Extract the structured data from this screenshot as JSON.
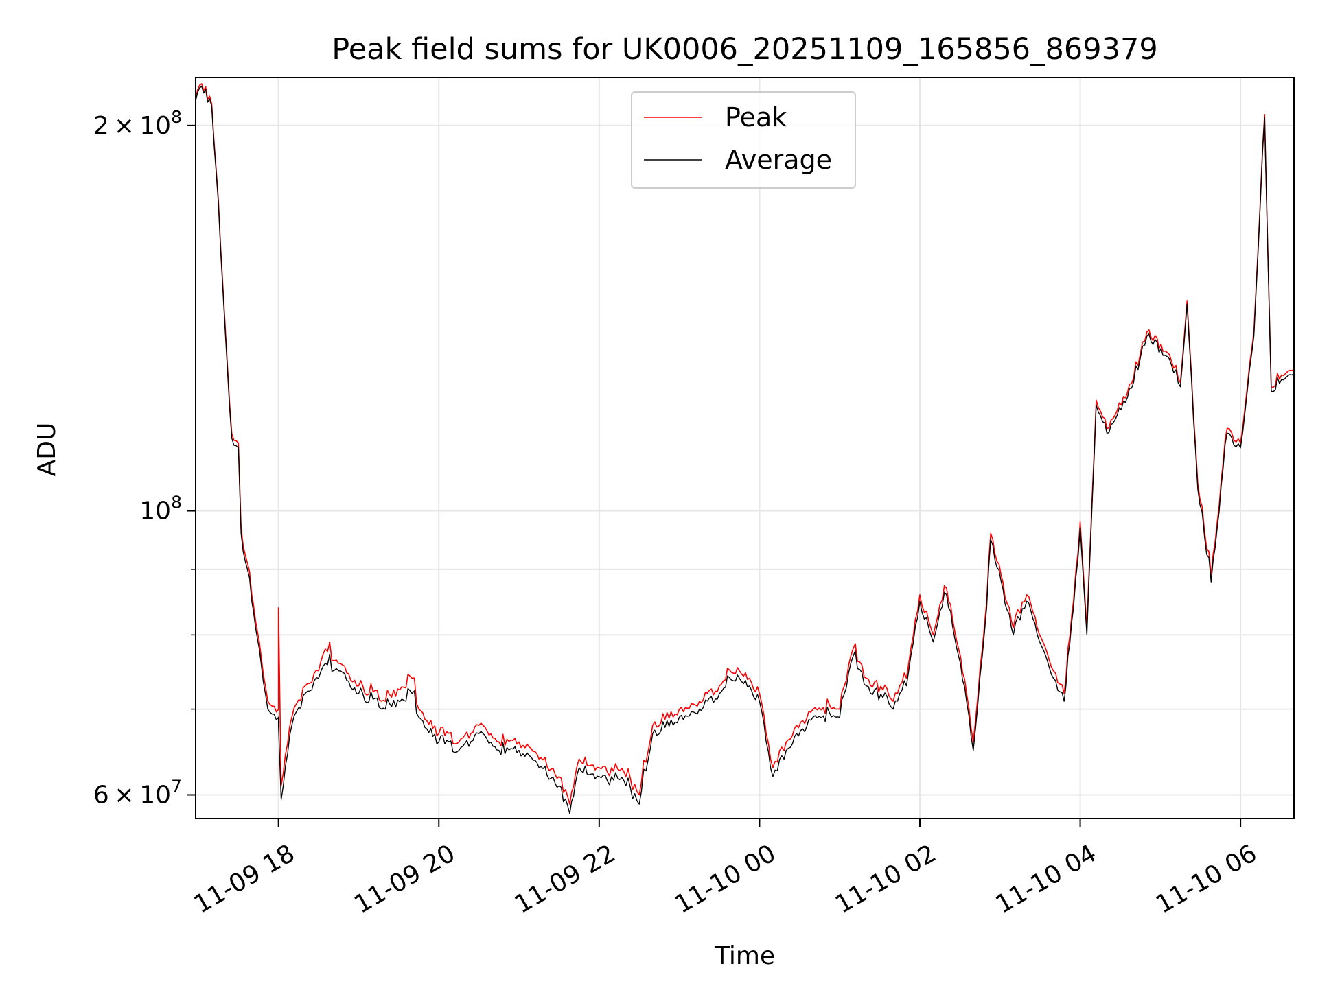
{
  "chart_data": {
    "type": "line",
    "title": "Peak field sums for UK0006_20251109_165856_869379",
    "xlabel": "Time",
    "ylabel": "ADU",
    "yscale": "log",
    "xlim": [
      "2025-11-09 16:58",
      "2025-11-10 06:40"
    ],
    "ylim": [
      57500000,
      218000000
    ],
    "grid": true,
    "legend_position": "upper center",
    "x_ticks": [
      {
        "time": "2025-11-09 18:00",
        "label": "11-09 18"
      },
      {
        "time": "2025-11-09 20:00",
        "label": "11-09 20"
      },
      {
        "time": "2025-11-09 22:00",
        "label": "11-09 22"
      },
      {
        "time": "2025-11-10 00:00",
        "label": "11-10 00"
      },
      {
        "time": "2025-11-10 02:00",
        "label": "11-10 02"
      },
      {
        "time": "2025-11-10 04:00",
        "label": "11-10 04"
      },
      {
        "time": "2025-11-10 06:00",
        "label": "11-10 06"
      }
    ],
    "y_ticks": [
      {
        "value": 60000000,
        "mantissa": "6",
        "exponent": "7",
        "label": "6 × 10^7"
      },
      {
        "value": 100000000,
        "mantissa": "",
        "exponent": "8",
        "label": "10^8"
      },
      {
        "value": 200000000,
        "mantissa": "2",
        "exponent": "8",
        "label": "2 × 10^8"
      }
    ],
    "y_minor_ticks": [
      70000000,
      80000000,
      90000000
    ],
    "series": [
      {
        "name": "Peak",
        "color": "#ff0000",
        "points": [
          [
            "2025-11-09 16:58",
            210000000
          ],
          [
            "2025-11-09 17:01",
            215000000
          ],
          [
            "2025-11-09 17:10",
            208000000
          ],
          [
            "2025-11-09 17:15",
            175000000
          ],
          [
            "2025-11-09 17:20",
            140000000
          ],
          [
            "2025-11-09 17:25",
            115000000
          ],
          [
            "2025-11-09 17:30",
            113000000
          ],
          [
            "2025-11-09 17:32",
            97000000
          ],
          [
            "2025-11-09 17:40",
            86000000
          ],
          [
            "2025-11-09 17:47",
            77000000
          ],
          [
            "2025-11-09 17:52",
            71000000
          ],
          [
            "2025-11-09 18:00",
            70000000
          ],
          [
            "2025-11-09 18:00",
            84000000
          ],
          [
            "2025-11-09 18:02",
            61000000
          ],
          [
            "2025-11-09 18:10",
            69000000
          ],
          [
            "2025-11-09 18:20",
            73000000
          ],
          [
            "2025-11-09 18:30",
            75000000
          ],
          [
            "2025-11-09 18:35",
            78000000
          ],
          [
            "2025-11-09 18:45",
            76000000
          ],
          [
            "2025-11-09 19:00",
            73000000
          ],
          [
            "2025-11-09 19:20",
            71000000
          ],
          [
            "2025-11-09 19:40",
            74000000
          ],
          [
            "2025-11-09 19:45",
            70000000
          ],
          [
            "2025-11-09 20:00",
            67000000
          ],
          [
            "2025-11-09 20:15",
            66000000
          ],
          [
            "2025-11-09 20:30",
            68000000
          ],
          [
            "2025-11-09 20:45",
            66000000
          ],
          [
            "2025-11-09 21:00",
            66000000
          ],
          [
            "2025-11-09 21:15",
            64000000
          ],
          [
            "2025-11-09 21:30",
            62000000
          ],
          [
            "2025-11-09 21:38",
            59000000
          ],
          [
            "2025-11-09 21:45",
            64000000
          ],
          [
            "2025-11-09 22:00",
            63000000
          ],
          [
            "2025-11-09 22:20",
            62000000
          ],
          [
            "2025-11-09 22:30",
            60000000
          ],
          [
            "2025-11-09 22:40",
            68000000
          ],
          [
            "2025-11-09 23:00",
            70000000
          ],
          [
            "2025-11-09 23:15",
            71000000
          ],
          [
            "2025-11-09 23:30",
            73000000
          ],
          [
            "2025-11-09 23:45",
            75000000
          ],
          [
            "2025-11-10 00:00",
            72000000
          ],
          [
            "2025-11-10 00:10",
            63000000
          ],
          [
            "2025-11-10 00:20",
            66000000
          ],
          [
            "2025-11-10 00:40",
            70000000
          ],
          [
            "2025-11-10 01:00",
            70000000
          ],
          [
            "2025-11-10 01:10",
            78000000
          ],
          [
            "2025-11-10 01:20",
            74000000
          ],
          [
            "2025-11-10 01:40",
            71000000
          ],
          [
            "2025-11-10 01:50",
            74000000
          ],
          [
            "2025-11-10 02:00",
            86000000
          ],
          [
            "2025-11-10 02:10",
            80000000
          ],
          [
            "2025-11-10 02:20",
            87000000
          ],
          [
            "2025-11-10 02:35",
            72000000
          ],
          [
            "2025-11-10 02:40",
            66000000
          ],
          [
            "2025-11-10 02:50",
            85000000
          ],
          [
            "2025-11-10 02:53",
            96000000
          ],
          [
            "2025-11-10 03:10",
            81000000
          ],
          [
            "2025-11-10 03:20",
            86000000
          ],
          [
            "2025-11-10 03:40",
            75000000
          ],
          [
            "2025-11-10 03:48",
            72000000
          ],
          [
            "2025-11-10 03:55",
            85000000
          ],
          [
            "2025-11-10 04:00",
            98000000
          ],
          [
            "2025-11-10 04:05",
            81000000
          ],
          [
            "2025-11-10 04:12",
            122000000
          ],
          [
            "2025-11-10 04:20",
            116000000
          ],
          [
            "2025-11-10 04:40",
            127000000
          ],
          [
            "2025-11-10 04:50",
            138000000
          ],
          [
            "2025-11-10 05:05",
            133000000
          ],
          [
            "2025-11-10 05:15",
            126000000
          ],
          [
            "2025-11-10 05:20",
            146000000
          ],
          [
            "2025-11-10 05:28",
            105000000
          ],
          [
            "2025-11-10 05:38",
            89000000
          ],
          [
            "2025-11-10 05:50",
            116000000
          ],
          [
            "2025-11-10 06:00",
            113000000
          ],
          [
            "2025-11-10 06:10",
            138000000
          ],
          [
            "2025-11-10 06:18",
            204000000
          ],
          [
            "2025-11-10 06:23",
            125000000
          ],
          [
            "2025-11-10 06:40",
            129000000
          ]
        ]
      },
      {
        "name": "Average",
        "color": "#000000",
        "points": [
          [
            "2025-11-09 16:58",
            209000000
          ],
          [
            "2025-11-09 17:01",
            214000000
          ],
          [
            "2025-11-09 17:10",
            207000000
          ],
          [
            "2025-11-09 17:15",
            174000000
          ],
          [
            "2025-11-09 17:20",
            139000000
          ],
          [
            "2025-11-09 17:25",
            114000000
          ],
          [
            "2025-11-09 17:30",
            112000000
          ],
          [
            "2025-11-09 17:32",
            96000000
          ],
          [
            "2025-11-09 17:40",
            85000000
          ],
          [
            "2025-11-09 17:47",
            76000000
          ],
          [
            "2025-11-09 17:52",
            70000000
          ],
          [
            "2025-11-09 18:00",
            69000000
          ],
          [
            "2025-11-09 18:00",
            68000000
          ],
          [
            "2025-11-09 18:02",
            59500000
          ],
          [
            "2025-11-09 18:10",
            68000000
          ],
          [
            "2025-11-09 18:20",
            72000000
          ],
          [
            "2025-11-09 18:30",
            74000000
          ],
          [
            "2025-11-09 18:35",
            76000000
          ],
          [
            "2025-11-09 18:45",
            75000000
          ],
          [
            "2025-11-09 19:00",
            72000000
          ],
          [
            "2025-11-09 19:20",
            70000000
          ],
          [
            "2025-11-09 19:40",
            72000000
          ],
          [
            "2025-11-09 19:45",
            69000000
          ],
          [
            "2025-11-09 20:00",
            66000000
          ],
          [
            "2025-11-09 20:15",
            65000000
          ],
          [
            "2025-11-09 20:30",
            67000000
          ],
          [
            "2025-11-09 20:45",
            65000000
          ],
          [
            "2025-11-09 21:00",
            65000000
          ],
          [
            "2025-11-09 21:15",
            63000000
          ],
          [
            "2025-11-09 21:30",
            61000000
          ],
          [
            "2025-11-09 21:38",
            58000000
          ],
          [
            "2025-11-09 21:45",
            63000000
          ],
          [
            "2025-11-09 22:00",
            62000000
          ],
          [
            "2025-11-09 22:20",
            61000000
          ],
          [
            "2025-11-09 22:30",
            59000000
          ],
          [
            "2025-11-09 22:40",
            67000000
          ],
          [
            "2025-11-09 23:00",
            69000000
          ],
          [
            "2025-11-09 23:15",
            70000000
          ],
          [
            "2025-11-09 23:30",
            72000000
          ],
          [
            "2025-11-09 23:45",
            74000000
          ],
          [
            "2025-11-10 00:00",
            71000000
          ],
          [
            "2025-11-10 00:10",
            62000000
          ],
          [
            "2025-11-10 00:20",
            65000000
          ],
          [
            "2025-11-10 00:40",
            69000000
          ],
          [
            "2025-11-10 01:00",
            69000000
          ],
          [
            "2025-11-10 01:10",
            77000000
          ],
          [
            "2025-11-10 01:20",
            73000000
          ],
          [
            "2025-11-10 01:40",
            70000000
          ],
          [
            "2025-11-10 01:50",
            73000000
          ],
          [
            "2025-11-10 02:00",
            85000000
          ],
          [
            "2025-11-10 02:10",
            79000000
          ],
          [
            "2025-11-10 02:20",
            86000000
          ],
          [
            "2025-11-10 02:35",
            71000000
          ],
          [
            "2025-11-10 02:40",
            65000000
          ],
          [
            "2025-11-10 02:50",
            84000000
          ],
          [
            "2025-11-10 02:53",
            95000000
          ],
          [
            "2025-11-10 03:10",
            80000000
          ],
          [
            "2025-11-10 03:20",
            85000000
          ],
          [
            "2025-11-10 03:40",
            74000000
          ],
          [
            "2025-11-10 03:48",
            71000000
          ],
          [
            "2025-11-10 03:55",
            84000000
          ],
          [
            "2025-11-10 04:00",
            97000000
          ],
          [
            "2025-11-10 04:05",
            80000000
          ],
          [
            "2025-11-10 04:12",
            121000000
          ],
          [
            "2025-11-10 04:20",
            115000000
          ],
          [
            "2025-11-10 04:40",
            126000000
          ],
          [
            "2025-11-10 04:50",
            137000000
          ],
          [
            "2025-11-10 05:05",
            132000000
          ],
          [
            "2025-11-10 05:15",
            125000000
          ],
          [
            "2025-11-10 05:20",
            145000000
          ],
          [
            "2025-11-10 05:28",
            104000000
          ],
          [
            "2025-11-10 05:38",
            88000000
          ],
          [
            "2025-11-10 05:50",
            115000000
          ],
          [
            "2025-11-10 06:00",
            112000000
          ],
          [
            "2025-11-10 06:10",
            137000000
          ],
          [
            "2025-11-10 06:18",
            203000000
          ],
          [
            "2025-11-10 06:23",
            124000000
          ],
          [
            "2025-11-10 06:40",
            128000000
          ]
        ]
      }
    ]
  }
}
